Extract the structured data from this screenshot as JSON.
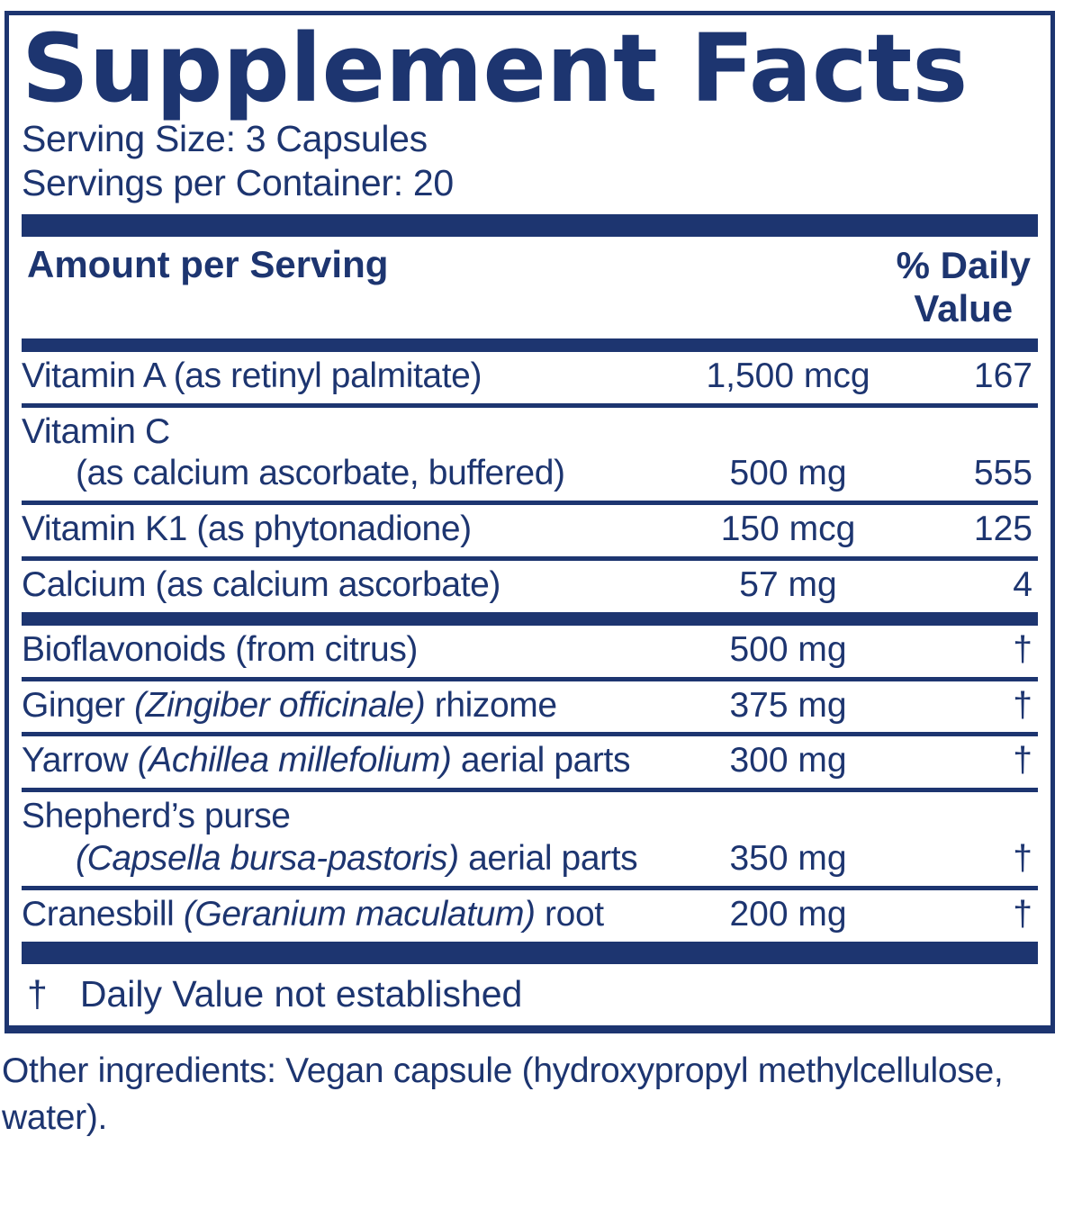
{
  "colors": {
    "navy": "#1d3570"
  },
  "title": "Supplement Facts",
  "serving_size": "Serving Size: 3 Capsules",
  "servings_per_container": "Servings per Container: 20",
  "table": {
    "amount_header": "Amount per Serving",
    "dv_header_line1": "% Daily",
    "dv_header_line2": "Value",
    "groups": [
      {
        "rows": [
          {
            "name": [
              {
                "t": "Vitamin A (as retinyl palmitate)"
              }
            ],
            "amount": "1,500 mcg",
            "dv": "167"
          },
          {
            "name": [
              {
                "t": "Vitamin C"
              }
            ],
            "name2": [
              {
                "t": "(as calcium ascorbate, buffered)"
              }
            ],
            "amount": "500 mg",
            "dv": "555"
          },
          {
            "name": [
              {
                "t": "Vitamin K1 (as phytonadione)"
              }
            ],
            "amount": "150 mcg",
            "dv": "125"
          },
          {
            "name": [
              {
                "t": "Calcium (as calcium ascorbate)"
              }
            ],
            "amount": "57 mg",
            "dv": "4"
          }
        ]
      },
      {
        "rows": [
          {
            "name": [
              {
                "t": "Bioflavonoids (from citrus)"
              }
            ],
            "amount": "500 mg",
            "dv": "†"
          },
          {
            "name": [
              {
                "t": "Ginger "
              },
              {
                "t": "(Zingiber officinale)",
                "i": true
              },
              {
                "t": " rhizome"
              }
            ],
            "amount": "375 mg",
            "dv": "†"
          },
          {
            "name": [
              {
                "t": "Yarrow "
              },
              {
                "t": "(Achillea millefolium)",
                "i": true
              },
              {
                "t": " aerial parts"
              }
            ],
            "amount": "300 mg",
            "dv": "†"
          },
          {
            "name": [
              {
                "t": "Shepherd’s purse"
              }
            ],
            "name2": [
              {
                "t": "(Capsella bursa-pastoris)",
                "i": true
              },
              {
                "t": " aerial parts"
              }
            ],
            "amount": "350 mg",
            "dv": "†"
          },
          {
            "name": [
              {
                "t": "Cranesbill "
              },
              {
                "t": "(Geranium maculatum)",
                "i": true
              },
              {
                "t": " root"
              }
            ],
            "amount": "200 mg",
            "dv": "†"
          }
        ]
      }
    ],
    "footnote": {
      "symbol": "†",
      "text": "Daily Value not established"
    }
  },
  "other_ingredients": "Other ingredients: Vegan capsule (hydroxypropyl methylcellulose, water)."
}
